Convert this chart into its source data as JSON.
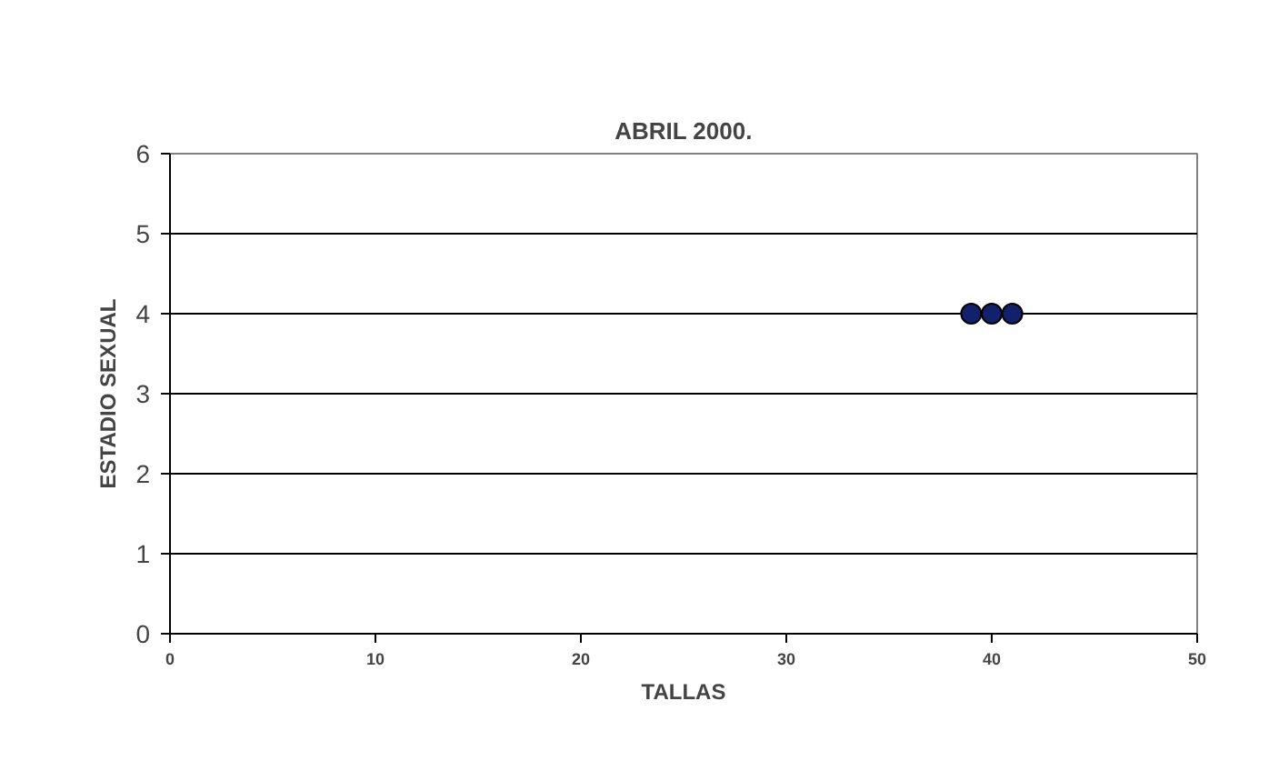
{
  "chart_data": {
    "type": "scatter",
    "title": "ABRIL 2000.",
    "xlabel": "TALLAS",
    "ylabel": "ESTADIO SEXUAL",
    "x": [
      39,
      40,
      41
    ],
    "values": [
      4,
      4,
      4
    ],
    "color": "#13206b",
    "marker": "circle",
    "xlim": [
      0,
      50
    ],
    "xticks": [
      0,
      10,
      20,
      30,
      40,
      50
    ],
    "ylim": [
      0,
      6
    ],
    "yticks": [
      0,
      1,
      2,
      3,
      4,
      5,
      6
    ],
    "grid": "y"
  }
}
